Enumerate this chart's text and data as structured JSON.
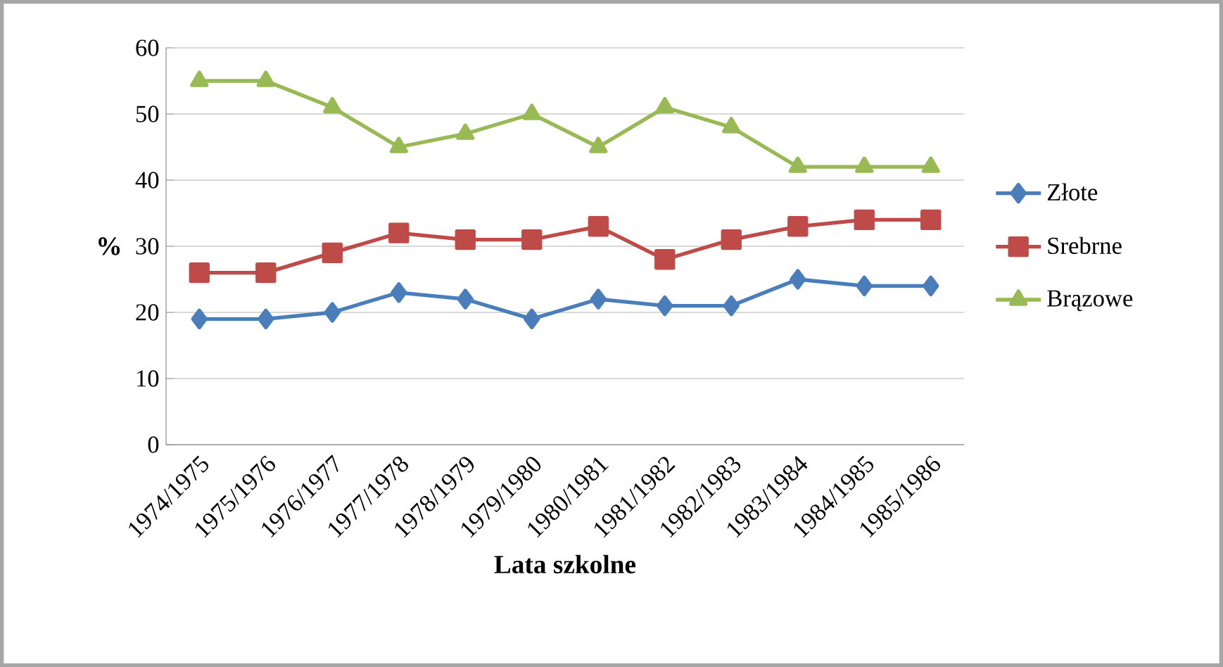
{
  "chart_data": {
    "type": "line",
    "xlabel": "Lata szkolne",
    "ylabel": "%",
    "categories": [
      "1974/1975",
      "1975/1976",
      "1976/1977",
      "1977/1978",
      "1978/1979",
      "1979/1980",
      "1980/1981",
      "1981/1982",
      "1982/1983",
      "1983/1984",
      "1984/1985",
      "1985/1986"
    ],
    "series": [
      {
        "name": "Złote",
        "color": "#4a7ebb",
        "marker": "diamond",
        "values": [
          19,
          19,
          20,
          23,
          22,
          19,
          22,
          21,
          21,
          25,
          24,
          24
        ]
      },
      {
        "name": "Srebrne",
        "color": "#be4b48",
        "marker": "square",
        "values": [
          26,
          26,
          29,
          32,
          31,
          31,
          33,
          28,
          31,
          33,
          34,
          34
        ]
      },
      {
        "name": "Brązowe",
        "color": "#98b954",
        "marker": "triangle",
        "values": [
          55,
          55,
          51,
          45,
          47,
          50,
          45,
          51,
          48,
          42,
          42,
          42
        ]
      }
    ],
    "ylim": [
      0,
      60
    ],
    "yticks": [
      0,
      10,
      20,
      30,
      40,
      50,
      60
    ],
    "grid": "y",
    "legend": "right"
  }
}
